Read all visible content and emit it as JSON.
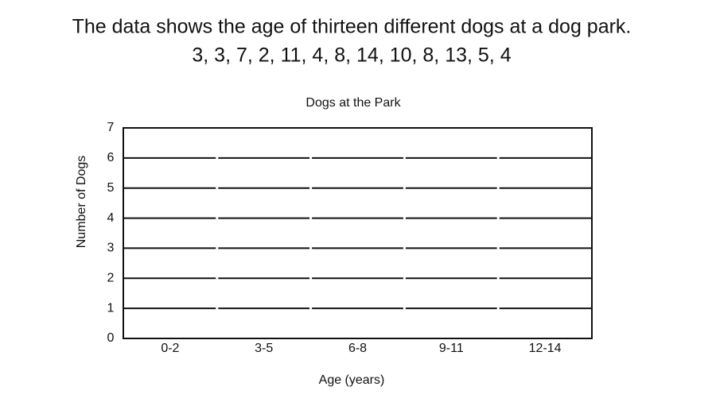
{
  "problem": {
    "statement": "The data shows the age of thirteen different dogs at a dog park.",
    "data": "3, 3, 7, 2, 11, 4, 8, 14, 10, 8, 13, 5, 4"
  },
  "chart_data": {
    "type": "bar",
    "title": "Dogs at the Park",
    "x_label": "Age (years)",
    "y_label": "Number of Dogs",
    "categories": [
      "0-2",
      "3-5",
      "6-8",
      "9-11",
      "12-14"
    ],
    "ylim": [
      0,
      7
    ],
    "yticks": [
      0,
      1,
      2,
      3,
      4,
      5,
      6,
      7
    ],
    "grid": true
  }
}
